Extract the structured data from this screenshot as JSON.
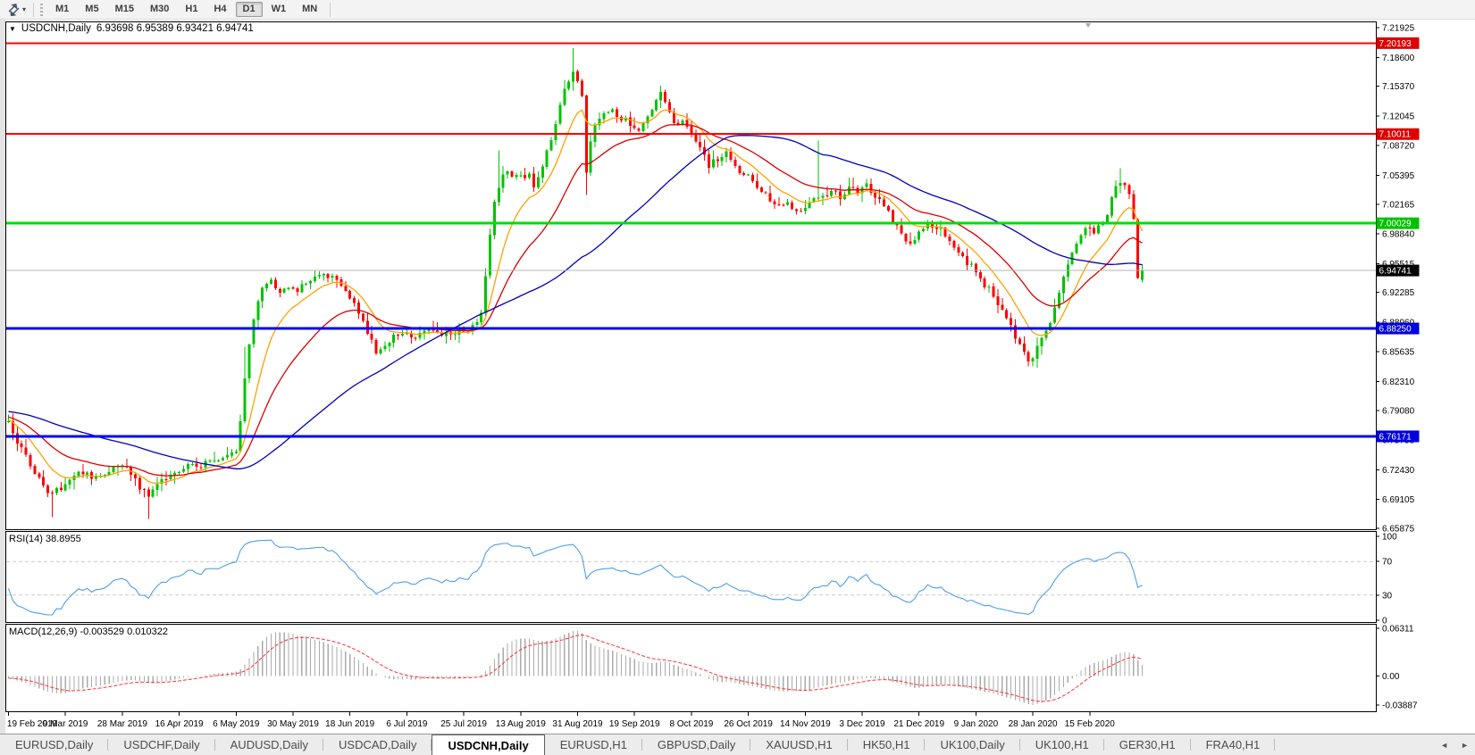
{
  "toolbar": {
    "dropdown_caret": "▾",
    "timeframes": [
      "M1",
      "M5",
      "M15",
      "M30",
      "H1",
      "H4",
      "D1",
      "W1",
      "MN"
    ],
    "active_timeframe": "D1"
  },
  "main_chart": {
    "dropdown_glyph": "▼",
    "symbol_label": "USDCNH,Daily",
    "ohlc_text": "6.93698 6.95389 6.93421 6.94741",
    "open": 6.93698,
    "high": 6.95389,
    "low": 6.93421,
    "close": 6.94741
  },
  "rsi_panel": {
    "label": "RSI(14) 38.8955",
    "value": 38.8955,
    "axis_labels": [
      "100",
      "70",
      "30",
      "0"
    ],
    "level_lines": [
      70,
      30
    ]
  },
  "macd_panel": {
    "label": "MACD(12,26,9) -0.003529 0.010322",
    "macd_value": -0.003529,
    "signal_value": 0.010322,
    "axis_top": "0.06311",
    "axis_zero": "0.00",
    "axis_bottom": "-0.03887"
  },
  "price_axis_labels": [
    "7.21925",
    "7.18600",
    "7.15370",
    "7.12045",
    "7.08720",
    "7.05395",
    "7.02165",
    "6.98840",
    "6.95515",
    "6.92285",
    "6.88960",
    "6.85635",
    "6.82310",
    "6.79080",
    "6.75755",
    "6.72430",
    "6.69105",
    "6.65875"
  ],
  "price_badges": [
    {
      "text": "7.20193",
      "price": 7.20193,
      "bg": "#dd0000",
      "fg": "#ffffff",
      "line": "#ff0000",
      "line_w": 2
    },
    {
      "text": "7.10011",
      "price": 7.10011,
      "bg": "#dd0000",
      "fg": "#ffffff",
      "line": "#ff0000",
      "line_w": 2
    },
    {
      "text": "7.00029",
      "price": 7.00029,
      "bg": "#00c300",
      "fg": "#ffffff",
      "line": "#00e000",
      "line_w": 3
    },
    {
      "text": "6.94741",
      "price": 6.94741,
      "bg": "#000000",
      "fg": "#ffffff",
      "line": "#b5b5b5",
      "line_w": 1
    },
    {
      "text": "6.88250",
      "price": 6.8825,
      "bg": "#0000dd",
      "fg": "#ffffff",
      "line": "#0000ff",
      "line_w": 3
    },
    {
      "text": "6.76171",
      "price": 6.76171,
      "bg": "#0000dd",
      "fg": "#ffffff",
      "line": "#0000ff",
      "line_w": 3
    }
  ],
  "date_axis": [
    "19 Feb 2019",
    "9 Mar 2019",
    "28 Mar 2019",
    "16 Apr 2019",
    "6 May 2019",
    "30 May 2019",
    "18 Jun 2019",
    "6 Jul 2019",
    "25 Jul 2019",
    "13 Aug 2019",
    "31 Aug 2019",
    "19 Sep 2019",
    "8 Oct 2019",
    "26 Oct 2019",
    "14 Nov 2019",
    "3 Dec 2019",
    "21 Dec 2019",
    "9 Jan 2020",
    "28 Jan 2020",
    "15 Feb 2020"
  ],
  "tab_bar": {
    "tabs": [
      "EURUSD,Daily",
      "USDCHF,Daily",
      "AUDUSD,Daily",
      "USDCAD,Daily",
      "USDCNH,Daily",
      "EURUSD,H1",
      "GBPUSD,Daily",
      "XAUUSD,H1",
      "HK50,H1",
      "UK100,Daily",
      "UK100,H1",
      "GER30,H1",
      "FRA40,H1"
    ],
    "active_tab": "USDCNH,Daily",
    "scroll_left_glyph": "◄",
    "scroll_right_glyph": "►"
  },
  "colors": {
    "bull_candle": "#00c300",
    "bear_candle": "#ff0000",
    "ma_fast": "#ffa200",
    "ma_mid": "#dc0000",
    "ma_slow": "#0000bb",
    "rsi_line": "#4d9fe8",
    "macd_histogram": "#ababab",
    "macd_signal": "#ff3333",
    "panel_border": "#000000",
    "axis_text": "#000000"
  },
  "chart_data": {
    "type": "candlestick",
    "symbol": "USDCNH",
    "timeframe": "Daily",
    "candles_shown": 260,
    "warmup": 60,
    "bars_per_gridline": 13,
    "price_range_top": 7.21925,
    "price_range_bottom": 6.65875,
    "last_close": 6.94741,
    "last_candle": {
      "o": 6.93698,
      "h": 6.95389,
      "l": 6.93421,
      "c": 6.94741
    },
    "horizontal_lines": [
      7.20193,
      7.10011,
      7.00029,
      6.8825,
      6.76171
    ],
    "moving_averages": [
      {
        "period": 10,
        "type": "ema",
        "color": "#ffa200"
      },
      {
        "period": 25,
        "type": "ema",
        "color": "#dc0000"
      },
      {
        "period": 55,
        "type": "sma",
        "color": "#0000bb"
      }
    ],
    "indicators": [
      {
        "name": "RSI",
        "period": 14,
        "current": 38.8955,
        "range": [
          0,
          100
        ],
        "levels": [
          30,
          70
        ],
        "color": "#4d9fe8"
      },
      {
        "name": "MACD",
        "fast": 12,
        "slow": 26,
        "signal": 9,
        "current_macd": -0.003529,
        "current_signal": 0.010322
      }
    ],
    "wick_overrides": [
      {
        "i": 0,
        "h": 6.786
      },
      {
        "i": 10,
        "l": 6.671
      },
      {
        "i": 32,
        "l": 6.669
      },
      {
        "i": 54,
        "h": 6.862
      },
      {
        "i": 112,
        "h": 7.082
      },
      {
        "i": 129,
        "h": 7.1965
      },
      {
        "i": 132,
        "l": 7.032
      },
      {
        "i": 185,
        "h": 7.093
      },
      {
        "i": 233,
        "l": 6.84
      },
      {
        "i": 254,
        "h": 7.062
      }
    ],
    "close_anchors": [
      [
        0,
        6.778
      ],
      [
        2,
        6.756
      ],
      [
        4,
        6.742
      ],
      [
        6,
        6.72
      ],
      [
        8,
        6.705
      ],
      [
        10,
        6.697
      ],
      [
        12,
        6.705
      ],
      [
        14,
        6.716
      ],
      [
        16,
        6.722
      ],
      [
        18,
        6.718
      ],
      [
        20,
        6.714
      ],
      [
        22,
        6.722
      ],
      [
        24,
        6.727
      ],
      [
        26,
        6.73
      ],
      [
        28,
        6.718
      ],
      [
        30,
        6.705
      ],
      [
        32,
        6.697
      ],
      [
        34,
        6.708
      ],
      [
        36,
        6.716
      ],
      [
        38,
        6.72
      ],
      [
        40,
        6.726
      ],
      [
        42,
        6.732
      ],
      [
        44,
        6.728
      ],
      [
        46,
        6.734
      ],
      [
        48,
        6.738
      ],
      [
        50,
        6.74
      ],
      [
        52,
        6.744
      ],
      [
        53,
        6.78
      ],
      [
        54,
        6.826
      ],
      [
        55,
        6.866
      ],
      [
        56,
        6.896
      ],
      [
        57,
        6.916
      ],
      [
        58,
        6.925
      ],
      [
        60,
        6.934
      ],
      [
        62,
        6.92
      ],
      [
        64,
        6.928
      ],
      [
        66,
        6.925
      ],
      [
        68,
        6.934
      ],
      [
        70,
        6.942
      ],
      [
        72,
        6.946
      ],
      [
        74,
        6.938
      ],
      [
        76,
        6.93
      ],
      [
        78,
        6.918
      ],
      [
        80,
        6.898
      ],
      [
        82,
        6.878
      ],
      [
        84,
        6.858
      ],
      [
        86,
        6.862
      ],
      [
        88,
        6.874
      ],
      [
        90,
        6.88
      ],
      [
        92,
        6.873
      ],
      [
        94,
        6.877
      ],
      [
        96,
        6.88
      ],
      [
        98,
        6.876
      ],
      [
        100,
        6.879
      ],
      [
        102,
        6.877
      ],
      [
        104,
        6.878
      ],
      [
        106,
        6.884
      ],
      [
        108,
        6.9
      ],
      [
        109,
        6.942
      ],
      [
        110,
        6.985
      ],
      [
        111,
        7.022
      ],
      [
        112,
        7.042
      ],
      [
        113,
        7.055
      ],
      [
        114,
        7.06
      ],
      [
        115,
        7.052
      ],
      [
        116,
        7.058
      ],
      [
        117,
        7.055
      ],
      [
        118,
        7.048
      ],
      [
        119,
        7.058
      ],
      [
        120,
        7.042
      ],
      [
        121,
        7.052
      ],
      [
        122,
        7.062
      ],
      [
        123,
        7.08
      ],
      [
        124,
        7.095
      ],
      [
        125,
        7.115
      ],
      [
        126,
        7.135
      ],
      [
        127,
        7.152
      ],
      [
        128,
        7.162
      ],
      [
        129,
        7.17
      ],
      [
        130,
        7.158
      ],
      [
        131,
        7.145
      ],
      [
        132,
        7.06
      ],
      [
        133,
        7.09
      ],
      [
        134,
        7.108
      ],
      [
        135,
        7.118
      ],
      [
        136,
        7.124
      ],
      [
        137,
        7.128
      ],
      [
        138,
        7.125
      ],
      [
        140,
        7.118
      ],
      [
        142,
        7.112
      ],
      [
        144,
        7.102
      ],
      [
        146,
        7.118
      ],
      [
        148,
        7.138
      ],
      [
        149,
        7.148
      ],
      [
        150,
        7.135
      ],
      [
        152,
        7.11
      ],
      [
        154,
        7.118
      ],
      [
        156,
        7.102
      ],
      [
        158,
        7.082
      ],
      [
        160,
        7.066
      ],
      [
        162,
        7.072
      ],
      [
        164,
        7.078
      ],
      [
        166,
        7.062
      ],
      [
        168,
        7.056
      ],
      [
        170,
        7.048
      ],
      [
        172,
        7.038
      ],
      [
        174,
        7.028
      ],
      [
        176,
        7.02
      ],
      [
        178,
        7.024
      ],
      [
        180,
        7.012
      ],
      [
        182,
        7.016
      ],
      [
        184,
        7.028
      ],
      [
        186,
        7.03
      ],
      [
        188,
        7.036
      ],
      [
        190,
        7.03
      ],
      [
        192,
        7.04
      ],
      [
        194,
        7.035
      ],
      [
        196,
        7.042
      ],
      [
        198,
        7.028
      ],
      [
        200,
        7.02
      ],
      [
        202,
        7.002
      ],
      [
        204,
        6.988
      ],
      [
        206,
        6.978
      ],
      [
        208,
        6.99
      ],
      [
        210,
        7.0
      ],
      [
        212,
        6.996
      ],
      [
        214,
        6.988
      ],
      [
        216,
        6.975
      ],
      [
        218,
        6.962
      ],
      [
        220,
        6.952
      ],
      [
        222,
        6.938
      ],
      [
        224,
        6.926
      ],
      [
        226,
        6.91
      ],
      [
        228,
        6.892
      ],
      [
        230,
        6.874
      ],
      [
        232,
        6.858
      ],
      [
        233,
        6.848
      ],
      [
        234,
        6.852
      ],
      [
        235,
        6.862
      ],
      [
        236,
        6.87
      ],
      [
        237,
        6.878
      ],
      [
        238,
        6.892
      ],
      [
        239,
        6.908
      ],
      [
        240,
        6.925
      ],
      [
        241,
        6.94
      ],
      [
        242,
        6.955
      ],
      [
        243,
        6.968
      ],
      [
        244,
        6.978
      ],
      [
        245,
        6.986
      ],
      [
        246,
        6.994
      ],
      [
        247,
        6.998
      ],
      [
        248,
        6.99
      ],
      [
        249,
        6.996
      ],
      [
        250,
        7.004
      ],
      [
        251,
        7.012
      ],
      [
        252,
        7.028
      ],
      [
        253,
        7.04
      ],
      [
        254,
        7.048
      ],
      [
        255,
        7.042
      ],
      [
        256,
        7.03
      ],
      [
        257,
        7.005
      ],
      [
        258,
        6.937
      ],
      [
        259,
        6.94741
      ]
    ]
  }
}
